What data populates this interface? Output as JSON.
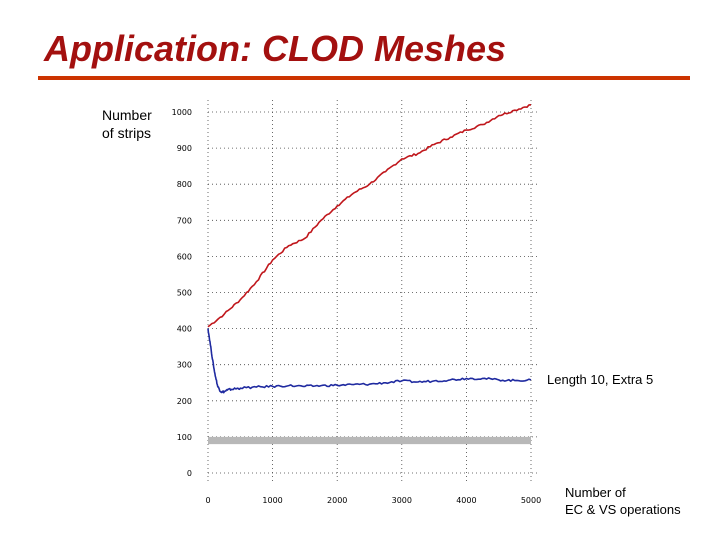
{
  "slide": {
    "title": "Application: CLOD Meshes"
  },
  "chart_data": {
    "type": "line",
    "title": "",
    "xlabel": "Number of EC & VS operations",
    "xlabel_lines": [
      "Number of",
      "EC & VS operations"
    ],
    "ylabel": "Number of strips",
    "ylabel_lines": [
      "Number",
      "of strips"
    ],
    "xlim": [
      0,
      5000
    ],
    "ylim": [
      0,
      1000
    ],
    "x_ticks": [
      0,
      1000,
      2000,
      3000,
      4000,
      5000
    ],
    "x_tick_labels": [
      "0",
      "1000",
      "2000",
      "3000",
      "4000",
      "5000"
    ],
    "y_ticks": [
      0,
      100,
      200,
      300,
      400,
      500,
      600,
      700,
      800,
      900,
      1000
    ],
    "y_tick_labels": [
      "0",
      "100",
      "200",
      "300",
      "400",
      "500",
      "600",
      "700",
      "800",
      "900",
      "1000"
    ],
    "grid": true,
    "annotations": [
      {
        "text": "Length 10, Extra 5"
      }
    ],
    "band": {
      "y_from": 80,
      "y_to": 100,
      "color": "#b8b8b8"
    },
    "series": [
      {
        "color": "#c0171c",
        "x": [
          0,
          250,
          500,
          750,
          1000,
          1250,
          1500,
          1750,
          2000,
          2250,
          2500,
          2750,
          3000,
          3250,
          3500,
          3750,
          4000,
          4250,
          4500,
          4750,
          5000
        ],
        "values": [
          405,
          440,
          480,
          530,
          590,
          630,
          650,
          700,
          740,
          775,
          800,
          835,
          870,
          885,
          910,
          930,
          950,
          965,
          990,
          1005,
          1020
        ]
      },
      {
        "color": "#1f2aa0",
        "x": [
          0,
          50,
          100,
          150,
          200,
          250,
          300,
          400,
          500,
          750,
          1000,
          1250,
          1500,
          1750,
          2000,
          2250,
          2500,
          2750,
          3000,
          3250,
          3500,
          3750,
          4000,
          4250,
          4500,
          4750,
          5000
        ],
        "values": [
          400,
          340,
          280,
          240,
          225,
          225,
          230,
          233,
          235,
          238,
          240,
          242,
          240,
          242,
          243,
          245,
          246,
          250,
          255,
          252,
          255,
          258,
          262,
          262,
          258,
          256,
          258
        ]
      }
    ]
  }
}
